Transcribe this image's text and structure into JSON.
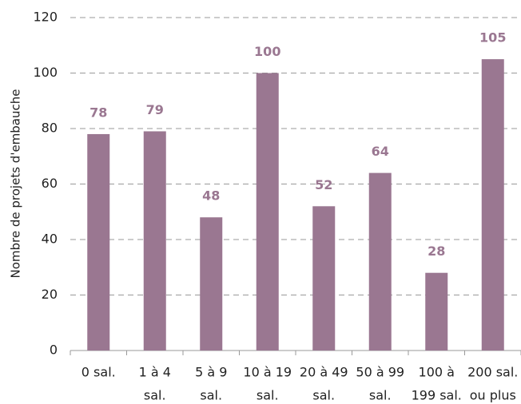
{
  "chart_data": {
    "type": "bar",
    "ylabel": "Nombre de projets d'embauche",
    "categories": [
      [
        "0 sal."
      ],
      [
        "1 à 4",
        "sal."
      ],
      [
        "5 à 9",
        "sal."
      ],
      [
        "10 à 19",
        "sal."
      ],
      [
        "20 à 49",
        "sal."
      ],
      [
        "50 à 99",
        "sal."
      ],
      [
        "100 à",
        "199 sal."
      ],
      [
        "200 sal.",
        "ou plus"
      ]
    ],
    "values": [
      78,
      79,
      48,
      100,
      52,
      64,
      28,
      105
    ],
    "color": "#9a7791",
    "ylim": [
      0,
      120
    ],
    "yticks": [
      0,
      20,
      40,
      60,
      80,
      100,
      120
    ],
    "grid": true
  }
}
